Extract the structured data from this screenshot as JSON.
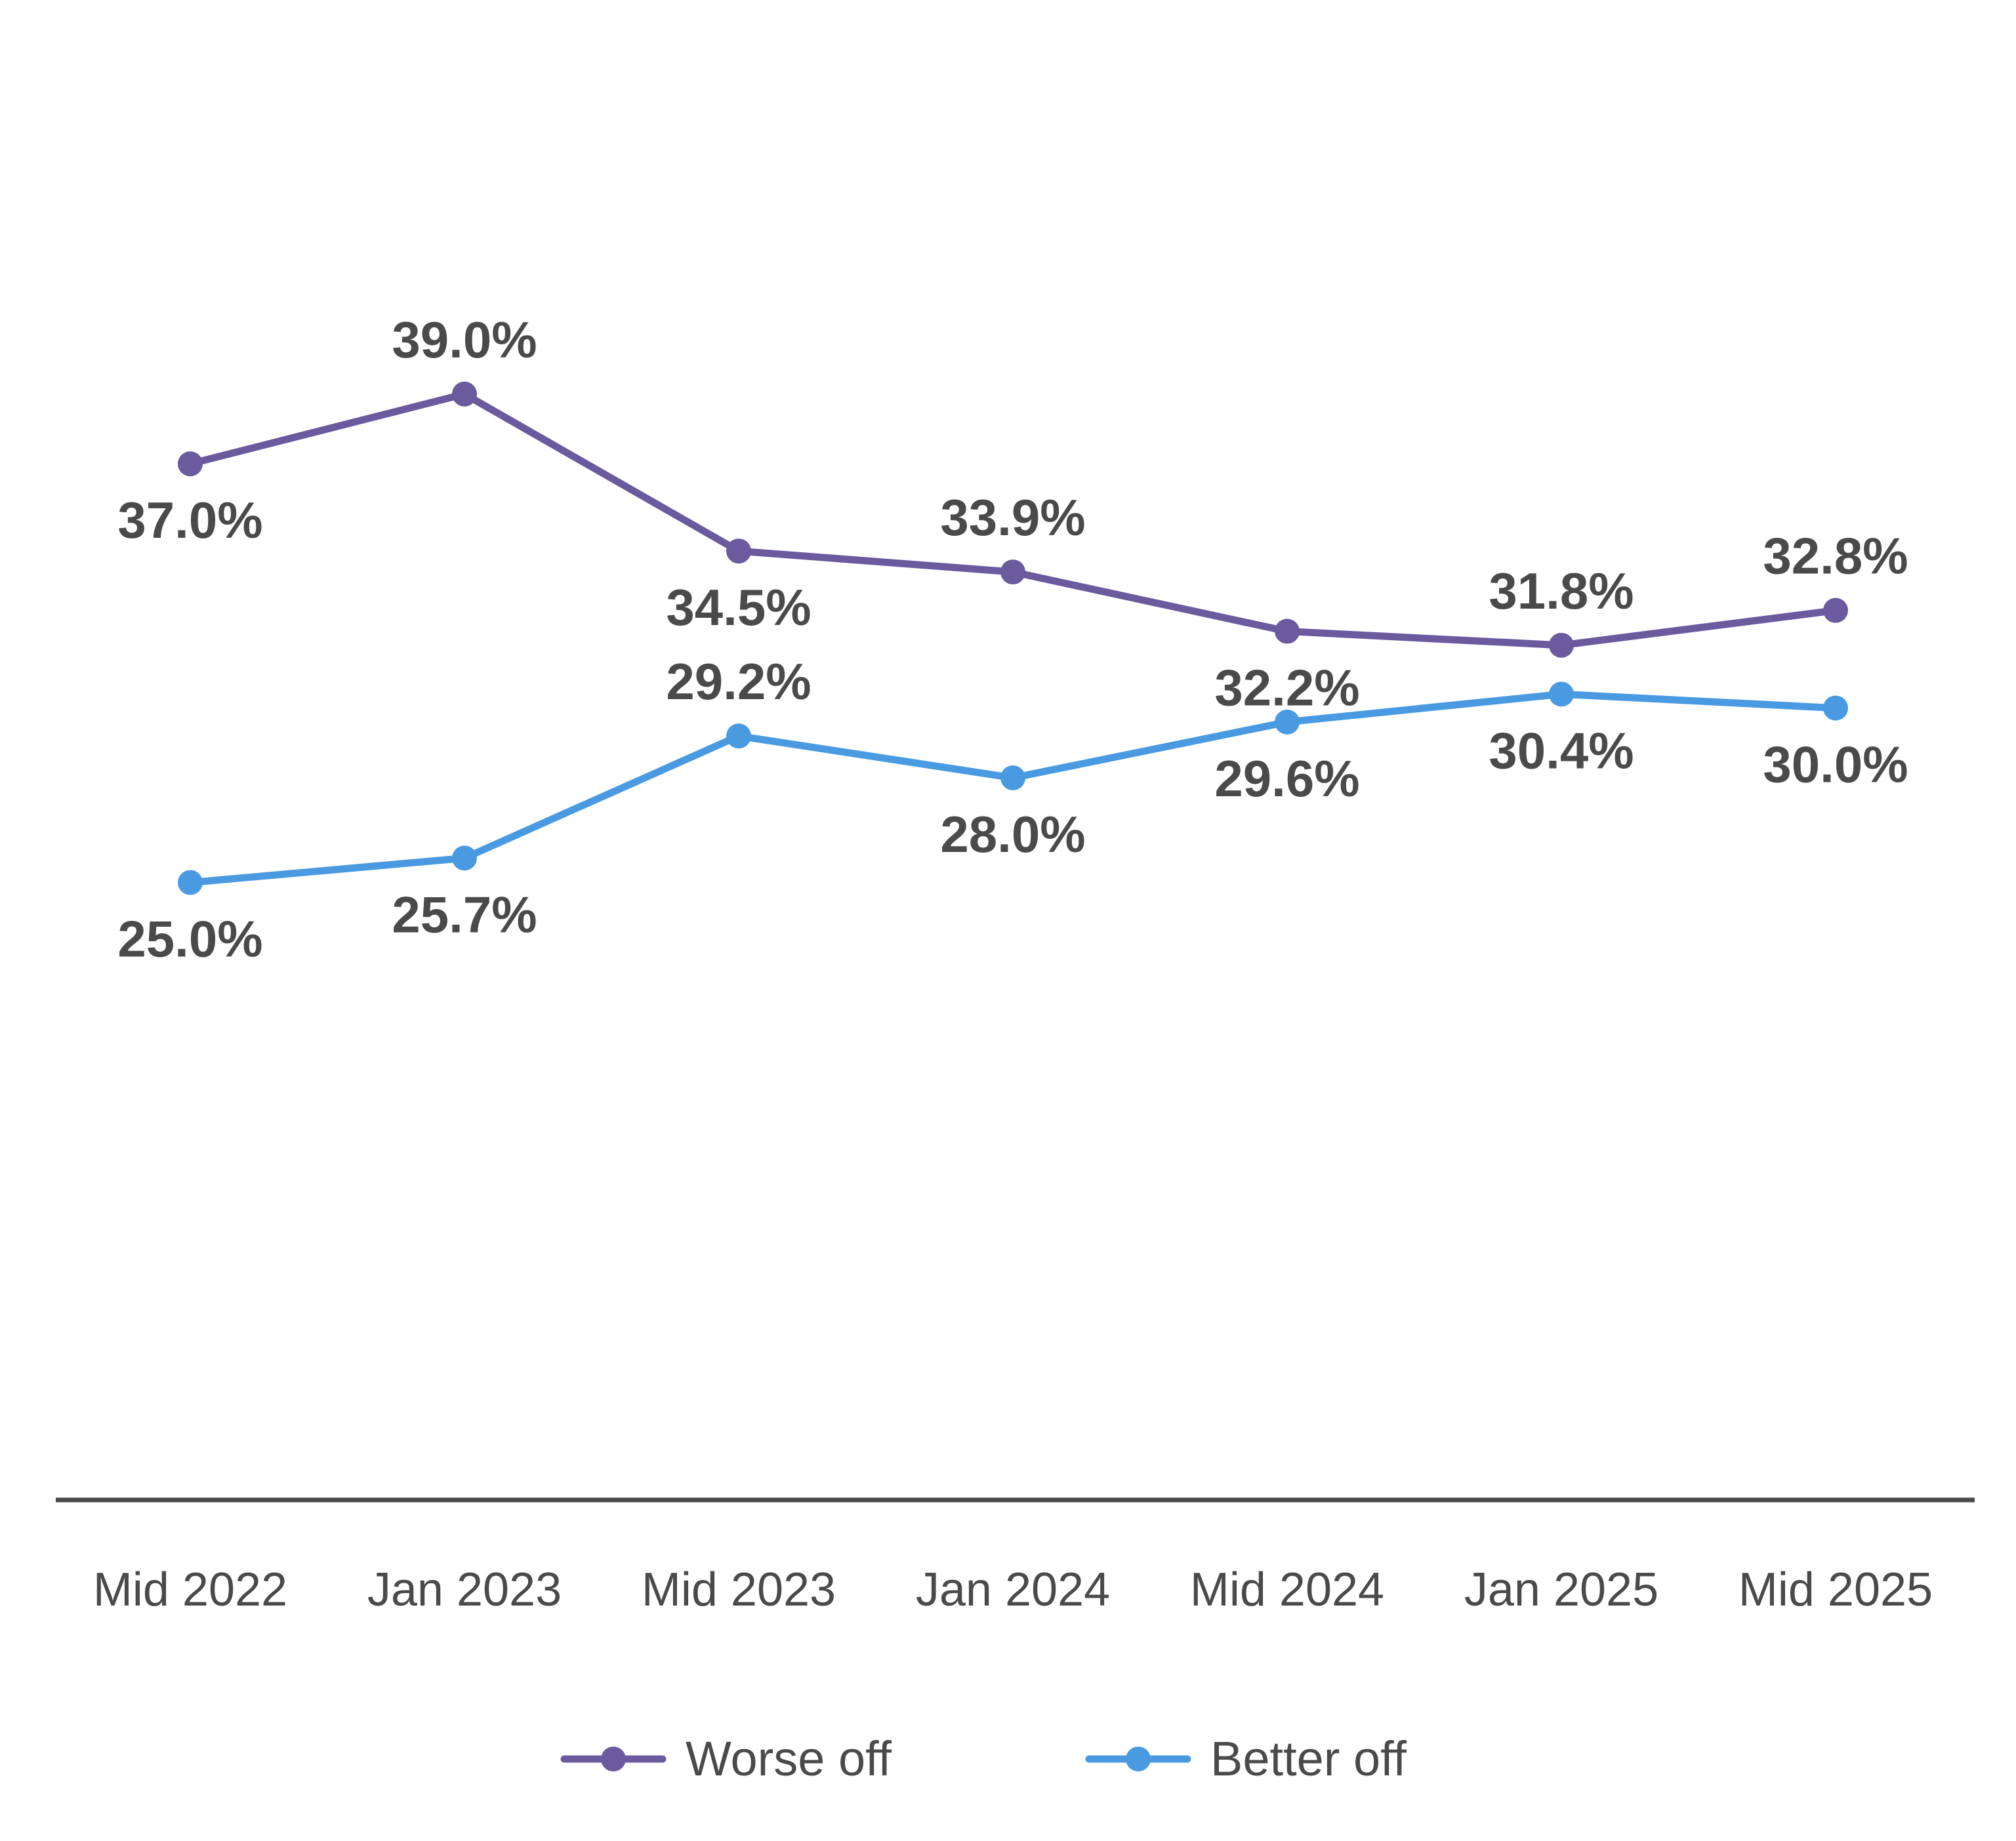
{
  "chart_data": {
    "type": "line",
    "categories": [
      "Mid 2022",
      "Jan 2023",
      "Mid 2023",
      "Jan 2024",
      "Mid 2024",
      "Jan 2025",
      "Mid 2025"
    ],
    "series": [
      {
        "name": "Worse off",
        "color": "#6a5a9e",
        "values": [
          37.0,
          39.0,
          34.5,
          33.9,
          32.2,
          31.8,
          32.8
        ],
        "labels": [
          "37.0%",
          "39.0%",
          "34.5%",
          "33.9%",
          "32.2%",
          "31.8%",
          "32.8%"
        ],
        "label_positions": [
          "below",
          "above",
          "below",
          "above",
          "below",
          "above",
          "above"
        ]
      },
      {
        "name": "Better off",
        "color": "#4a9ae2",
        "values": [
          25.0,
          25.7,
          29.2,
          28.0,
          29.6,
          30.4,
          30.0
        ],
        "labels": [
          "25.0%",
          "25.7%",
          "29.2%",
          "28.0%",
          "29.6%",
          "30.4%",
          "30.0%"
        ],
        "label_positions": [
          "below",
          "below",
          "above",
          "below",
          "below",
          "below",
          "below"
        ]
      }
    ],
    "title": "",
    "xlabel": "",
    "ylabel": "",
    "ylim": [
      20,
      42
    ],
    "y_axis_visible": false,
    "grid": false,
    "legend": "bottom-center",
    "axis_color": "#4a4a4a",
    "label_color": "#4a4a4a"
  }
}
